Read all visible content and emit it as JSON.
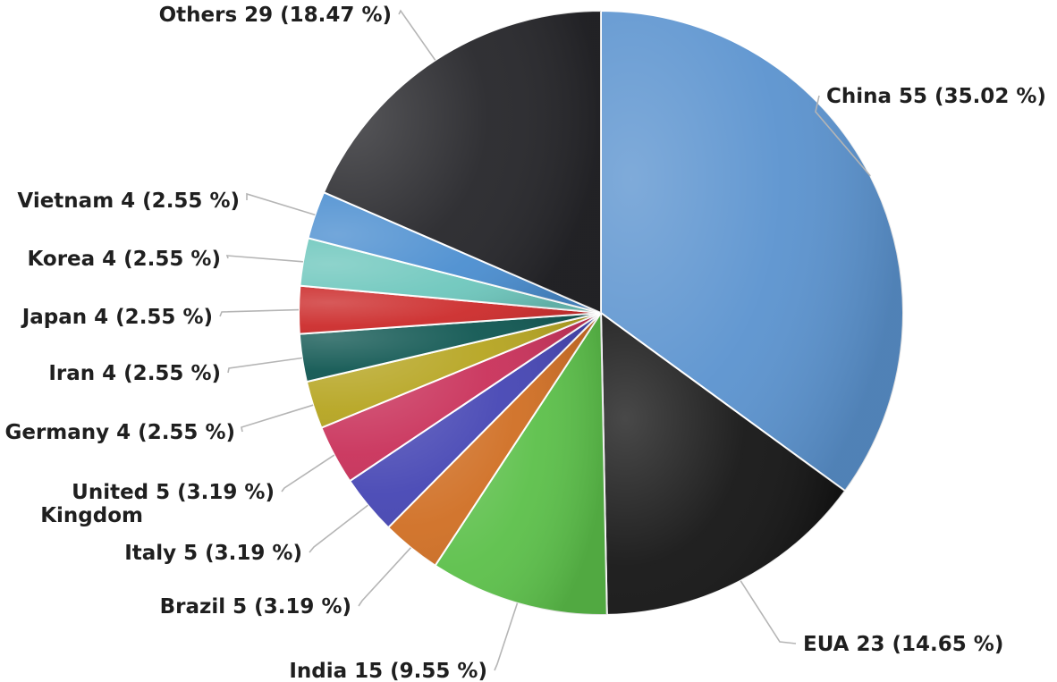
{
  "chart_data": {
    "type": "pie",
    "title": "",
    "legend": "none",
    "slices": [
      {
        "label": "China",
        "value": 55,
        "percent": "35.02 %",
        "color": "#5b93cf"
      },
      {
        "label": "EUA",
        "value": 23,
        "percent": "14.65 %",
        "color": "#151515"
      },
      {
        "label": "India",
        "value": 15,
        "percent": "9.55 %",
        "color": "#5cc04a"
      },
      {
        "label": "Brazil",
        "value": 5,
        "percent": "3.19 %",
        "color": "#d06f24"
      },
      {
        "label": "Italy",
        "value": 5,
        "percent": "3.19 %",
        "color": "#4646b4"
      },
      {
        "label": "United Kingdom",
        "value": 5,
        "percent": "3.19 %",
        "color": "#c9315a"
      },
      {
        "label": "Germany",
        "value": 4,
        "percent": "2.55 %",
        "color": "#b6a521"
      },
      {
        "label": "Iran",
        "value": 4,
        "percent": "2.55 %",
        "color": "#105752"
      },
      {
        "label": "Japan",
        "value": 4,
        "percent": "2.55 %",
        "color": "#cc2b2b"
      },
      {
        "label": "Korea",
        "value": 4,
        "percent": "2.55 %",
        "color": "#6ec7bd"
      },
      {
        "label": "Vietnam",
        "value": 4,
        "percent": "2.55 %",
        "color": "#4b8ed0"
      },
      {
        "label": "Others",
        "value": 29,
        "percent": "18.47 %",
        "color": "#26262a"
      }
    ]
  }
}
